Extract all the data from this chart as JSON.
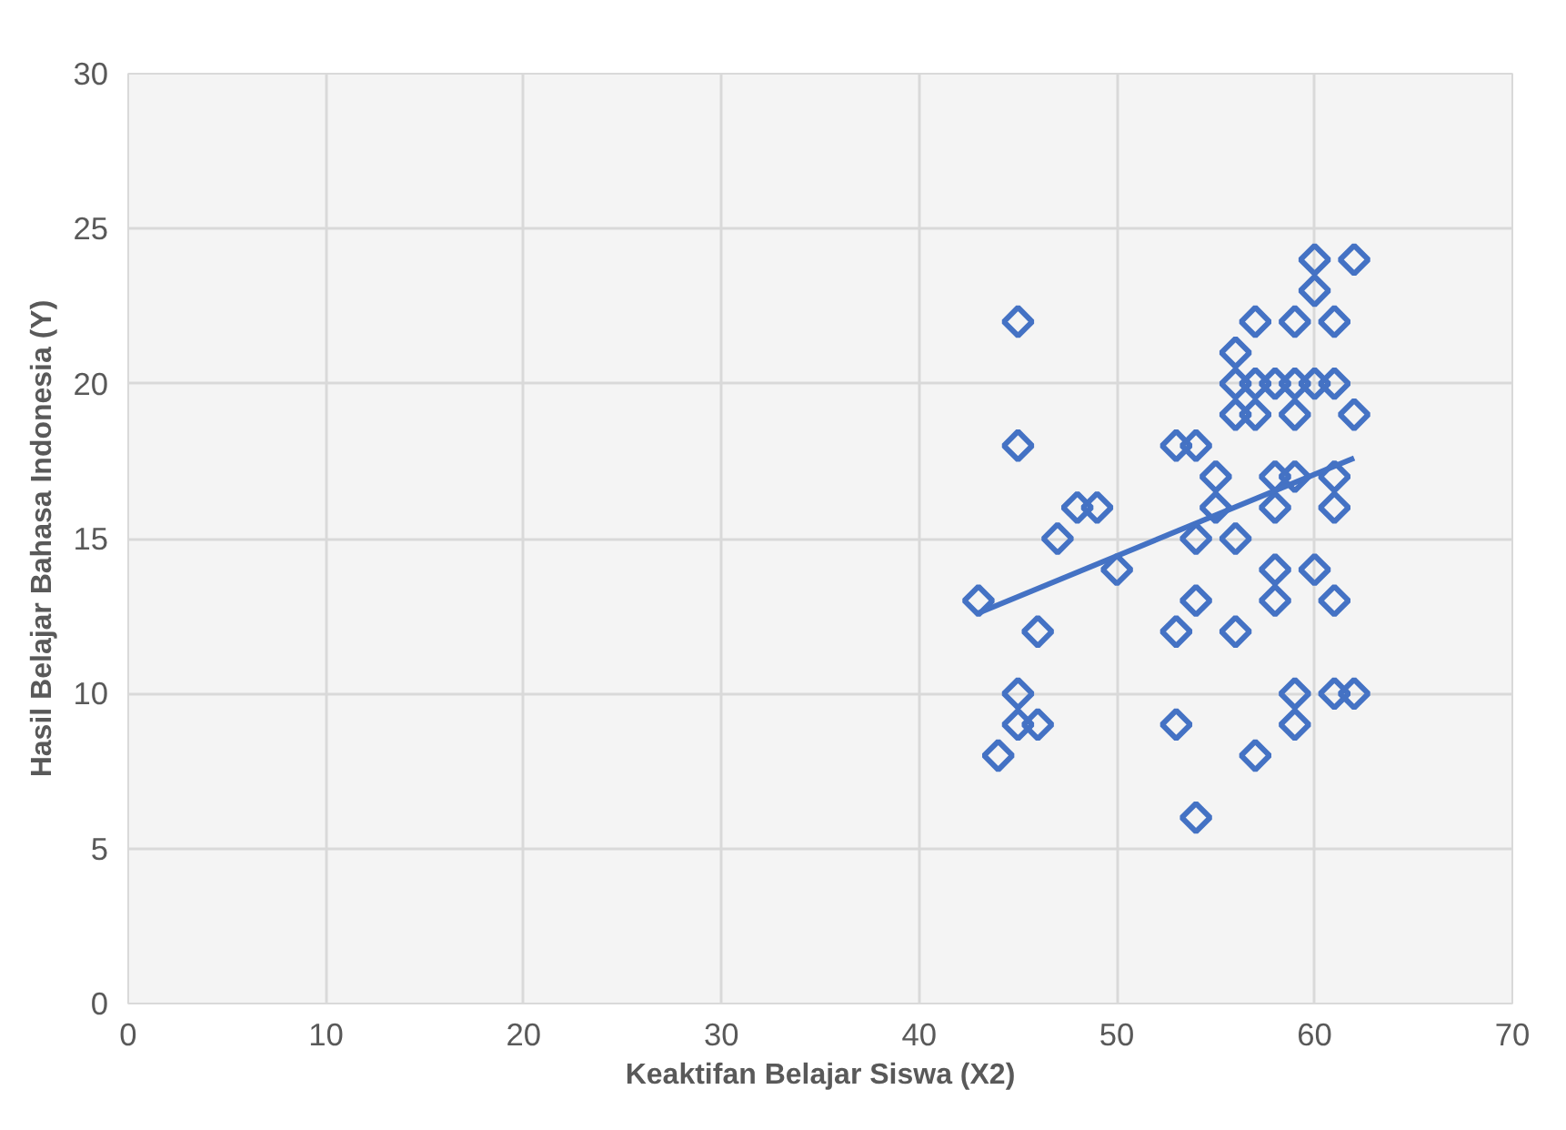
{
  "chart_data": {
    "type": "scatter",
    "xlabel": "Keaktifan Belajar Siswa (X2)",
    "ylabel": "Hasil Belajar Bahasa Indonesia (Y)",
    "xlim": [
      0,
      70
    ],
    "ylim": [
      0,
      30
    ],
    "xticks": [
      0,
      10,
      20,
      30,
      40,
      50,
      60,
      70
    ],
    "yticks": [
      0,
      5,
      10,
      15,
      20,
      25,
      30
    ],
    "grid": true,
    "marker": "diamond",
    "series": [
      {
        "color": "#4472c4",
        "x": [
          43,
          44,
          45,
          45,
          45,
          45,
          46,
          46,
          47,
          48,
          49,
          50,
          53,
          53,
          53,
          54,
          54,
          54,
          54,
          55,
          55,
          56,
          56,
          56,
          56,
          56,
          57,
          57,
          57,
          57,
          58,
          58,
          58,
          58,
          58,
          59,
          59,
          59,
          59,
          59,
          59,
          60,
          60,
          60,
          60,
          61,
          61,
          61,
          61,
          61,
          61,
          62,
          62,
          62
        ],
        "values": [
          13,
          8,
          22,
          18,
          10,
          9,
          12,
          9,
          15,
          16,
          16,
          14,
          18,
          12,
          9,
          18,
          15,
          13,
          6,
          17,
          16,
          21,
          20,
          19,
          15,
          12,
          22,
          20,
          19,
          8,
          20,
          17,
          16,
          14,
          13,
          22,
          20,
          19,
          17,
          10,
          9,
          24,
          23,
          20,
          14,
          22,
          20,
          17,
          16,
          13,
          10,
          24,
          19,
          10
        ]
      },
      {
        "type": "line",
        "color": "#4472c4",
        "x": [
          43,
          62
        ],
        "values": [
          12.6,
          17.6
        ],
        "marker": "none"
      }
    ]
  }
}
